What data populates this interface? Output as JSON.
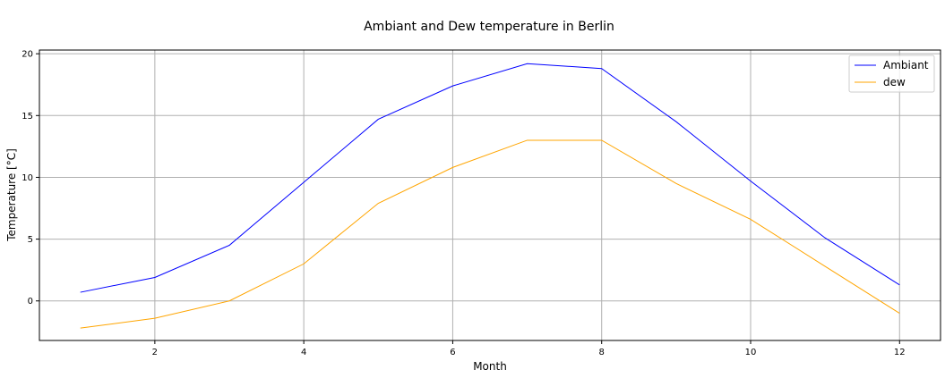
{
  "chart_data": {
    "type": "line",
    "title": "Ambiant and Dew temperature in Berlin",
    "xlabel": "Month",
    "ylabel": "Temperature [°C]",
    "xlim": [
      0.45,
      12.55
    ],
    "ylim": [
      -3.2,
      20.3
    ],
    "xticks": [
      2,
      4,
      6,
      8,
      10,
      12
    ],
    "yticks": [
      0,
      5,
      10,
      15,
      20
    ],
    "grid": true,
    "legend_position": "top-right",
    "x": [
      1,
      2,
      3,
      4,
      5,
      6,
      7,
      8,
      9,
      10,
      11,
      12
    ],
    "series": [
      {
        "name": "Ambiant",
        "color": "#0000ff",
        "values": [
          0.7,
          1.9,
          4.5,
          9.6,
          14.7,
          17.4,
          19.2,
          18.8,
          14.5,
          9.7,
          5.1,
          1.3
        ]
      },
      {
        "name": "dew",
        "color": "#ffa500",
        "values": [
          -2.2,
          -1.4,
          0.0,
          3.0,
          7.9,
          10.8,
          13.0,
          13.0,
          9.5,
          6.6,
          2.8,
          -1.0
        ]
      }
    ]
  }
}
